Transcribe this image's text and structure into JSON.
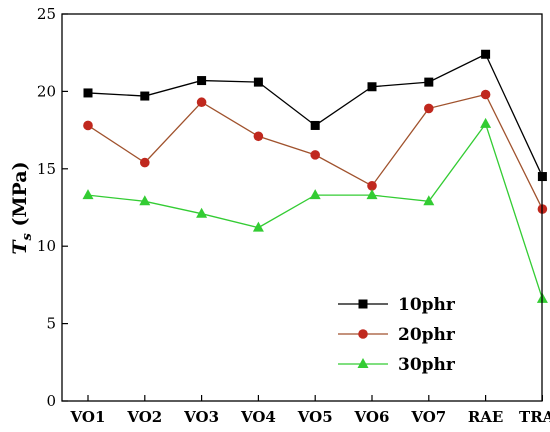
{
  "chart_data": {
    "type": "line",
    "title": "",
    "xlabel": "",
    "ylabel_main": "T",
    "ylabel_sub": "s",
    "ylabel_unit": " (MPa)",
    "categories": [
      "VO1",
      "VO2",
      "VO3",
      "VO4",
      "VO5",
      "VO6",
      "VO7",
      "RAE",
      "TRAE"
    ],
    "ylim": [
      0,
      25
    ],
    "yticks": [
      "0",
      "5",
      "10",
      "15",
      "20",
      "25"
    ],
    "ytick_values": [
      0,
      5,
      10,
      15,
      20,
      25
    ],
    "grid": false,
    "legend_position": "bottom-right",
    "series": [
      {
        "name": "10phr",
        "marker": "square",
        "color": "#000000",
        "marker_color": "#000000",
        "values": [
          19.9,
          19.7,
          20.7,
          20.6,
          17.8,
          20.3,
          20.6,
          22.4,
          14.5
        ]
      },
      {
        "name": "20phr",
        "marker": "circle",
        "color": "#a0522d",
        "marker_color": "#c0281e",
        "values": [
          17.8,
          15.4,
          19.3,
          17.1,
          15.9,
          13.9,
          18.9,
          19.8,
          12.4
        ]
      },
      {
        "name": "30phr",
        "marker": "triangle",
        "color": "#33cc33",
        "marker_color": "#33cc33",
        "values": [
          13.3,
          12.9,
          12.1,
          11.2,
          13.3,
          13.3,
          12.9,
          17.9,
          6.6
        ]
      }
    ]
  }
}
